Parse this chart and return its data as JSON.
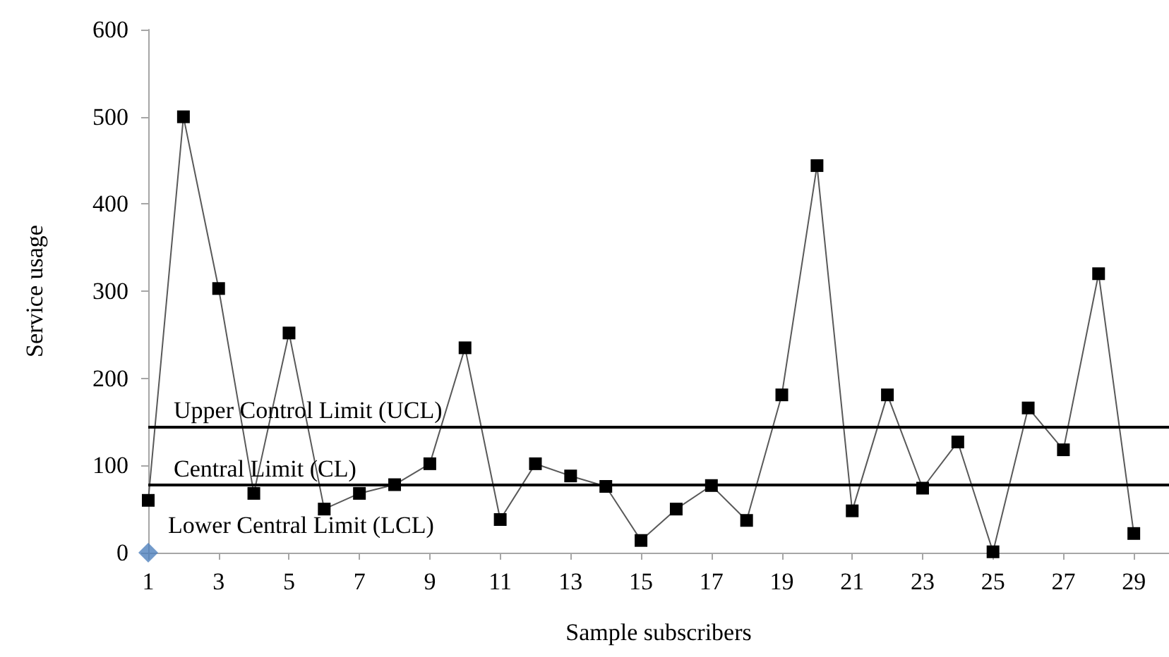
{
  "chart_data": {
    "type": "line",
    "xlabel": "Sample subscribers",
    "ylabel": "Service usage",
    "x": [
      1,
      2,
      3,
      4,
      5,
      6,
      7,
      8,
      9,
      10,
      11,
      12,
      13,
      14,
      15,
      16,
      17,
      18,
      19,
      20,
      21,
      22,
      23,
      24,
      25,
      26,
      27,
      28,
      29
    ],
    "series": [
      {
        "color": "#000000",
        "values": [
          60,
          500,
          303,
          68,
          252,
          50,
          68,
          78,
          102,
          235,
          38,
          102,
          88,
          76,
          14,
          50,
          77,
          37,
          181,
          444,
          48,
          181,
          74,
          127,
          1,
          166,
          118,
          320,
          22
        ]
      },
      {
        "type": "scatter",
        "marker": "diamond",
        "color": "#4f81bd",
        "x": [
          1
        ],
        "values": [
          0
        ]
      }
    ],
    "xlim": [
      1,
      30
    ],
    "xticks": [
      1,
      3,
      5,
      7,
      9,
      11,
      13,
      15,
      17,
      19,
      21,
      23,
      25,
      27,
      29
    ],
    "ylim": [
      0,
      600
    ],
    "yticks": [
      0,
      100,
      200,
      300,
      400,
      500,
      600
    ],
    "ref_lines": [
      {
        "axis": "y",
        "value": 145,
        "label": "Upper Control Limit (UCL)",
        "color": "#000000"
      },
      {
        "axis": "y",
        "value": 78,
        "label": "Central Limit (CL)",
        "color": "#000000"
      }
    ],
    "annotations": [
      {
        "text": "Lower Central Limit (LCL)",
        "x": 1,
        "y": 0
      }
    ],
    "marker": "square",
    "grid": false
  }
}
